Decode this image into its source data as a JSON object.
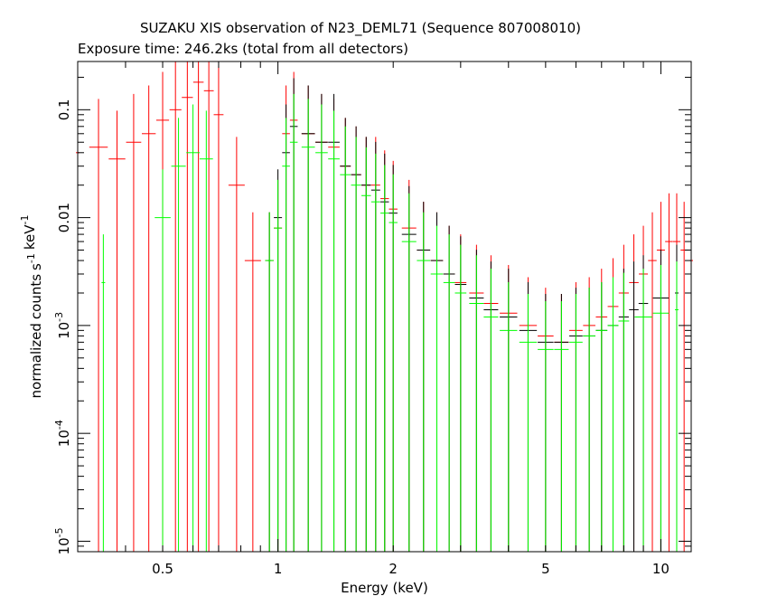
{
  "chart_data": {
    "type": "scatter",
    "title": "SUZAKU XIS observation of N23_DEML71 (Sequence 807008010)",
    "subtitle": "Exposure time: 246.2ks (total from all detectors)",
    "xlabel": "Energy (keV)",
    "ylabel": "normalized counts s-1 keV-1",
    "xscale": "log",
    "yscale": "log",
    "xlim": [
      0.3,
      12
    ],
    "ylim": [
      8e-06,
      0.28
    ],
    "x_ticks": [
      {
        "value": 0.5,
        "label": "0.5"
      },
      {
        "value": 1,
        "label": "1"
      },
      {
        "value": 2,
        "label": "2"
      },
      {
        "value": 5,
        "label": "5"
      },
      {
        "value": 10,
        "label": "10"
      }
    ],
    "y_ticks": [
      {
        "value": 1e-05,
        "label": "10",
        "exp": "-5"
      },
      {
        "value": 0.0001,
        "label": "10",
        "exp": "-4"
      },
      {
        "value": 0.001,
        "label": "10",
        "exp": "-3"
      },
      {
        "value": 0.01,
        "label": "0.01",
        "exp": ""
      },
      {
        "value": 0.1,
        "label": "0.1",
        "exp": ""
      }
    ],
    "series": [
      {
        "color": "#ff0000",
        "style": "errorbars",
        "x": [
          0.3,
          0.34,
          0.38,
          0.42,
          0.46,
          0.5,
          0.54,
          0.58,
          0.62,
          0.66,
          0.7,
          0.78,
          0.86,
          0.95,
          1.0,
          1.05,
          1.1,
          1.2,
          1.3,
          1.4,
          1.5,
          1.6,
          1.7,
          1.8,
          1.9,
          2.0,
          2.2,
          2.4,
          2.6,
          2.8,
          3.0,
          3.3,
          3.6,
          4.0,
          4.5,
          5.0,
          5.5,
          6.0,
          6.5,
          7.0,
          7.5,
          8.0,
          8.5,
          9.0,
          9.5,
          10.0,
          10.5,
          11.0,
          11.5,
          12.0
        ],
        "y": [
          0.04,
          0.045,
          0.035,
          0.05,
          0.06,
          0.08,
          0.1,
          0.13,
          0.18,
          0.15,
          0.09,
          0.02,
          0.004,
          0.004,
          0.008,
          0.06,
          0.08,
          0.06,
          0.05,
          0.045,
          0.03,
          0.025,
          0.02,
          0.02,
          0.015,
          0.012,
          0.008,
          0.005,
          0.004,
          0.003,
          0.0025,
          0.002,
          0.0016,
          0.0013,
          0.001,
          0.0008,
          0.0007,
          0.0009,
          0.001,
          0.0012,
          0.0015,
          0.002,
          0.0025,
          0.003,
          0.004,
          0.005,
          0.006,
          0.006,
          0.005,
          0.004
        ]
      },
      {
        "color": "#000000",
        "style": "errorbars",
        "x": [
          0.95,
          1.0,
          1.05,
          1.1,
          1.2,
          1.3,
          1.4,
          1.5,
          1.6,
          1.7,
          1.8,
          1.9,
          2.0,
          2.2,
          2.4,
          2.6,
          2.8,
          3.0,
          3.3,
          3.6,
          4.0,
          4.5,
          5.0,
          5.5,
          6.0,
          6.5,
          7.0,
          7.5,
          8.0,
          8.5,
          9.0,
          10.0,
          11.0
        ],
        "y": [
          0.004,
          0.01,
          0.04,
          0.07,
          0.06,
          0.05,
          0.05,
          0.03,
          0.025,
          0.02,
          0.018,
          0.014,
          0.011,
          0.007,
          0.005,
          0.004,
          0.003,
          0.0024,
          0.0018,
          0.0014,
          0.0012,
          0.0009,
          0.0007,
          0.0007,
          0.0008,
          0.0008,
          0.0009,
          0.001,
          0.0012,
          0.0014,
          0.0016,
          0.0018,
          0.002
        ]
      },
      {
        "color": "#00ff00",
        "style": "errorbars",
        "x": [
          0.35,
          0.5,
          0.55,
          0.6,
          0.65,
          0.95,
          1.0,
          1.05,
          1.1,
          1.2,
          1.3,
          1.4,
          1.5,
          1.6,
          1.7,
          1.8,
          1.9,
          2.0,
          2.2,
          2.4,
          2.6,
          2.8,
          3.0,
          3.3,
          3.6,
          4.0,
          4.5,
          5.0,
          5.5,
          6.0,
          6.5,
          7.0,
          7.5,
          8.0,
          9.0,
          10.0,
          11.0
        ],
        "y": [
          0.0025,
          0.01,
          0.03,
          0.04,
          0.035,
          0.004,
          0.008,
          0.03,
          0.05,
          0.045,
          0.04,
          0.035,
          0.025,
          0.02,
          0.016,
          0.014,
          0.011,
          0.009,
          0.006,
          0.004,
          0.003,
          0.0025,
          0.002,
          0.0016,
          0.0012,
          0.0009,
          0.0007,
          0.0006,
          0.0006,
          0.0007,
          0.0008,
          0.0009,
          0.001,
          0.0011,
          0.0012,
          0.0013,
          0.0014
        ]
      }
    ]
  }
}
